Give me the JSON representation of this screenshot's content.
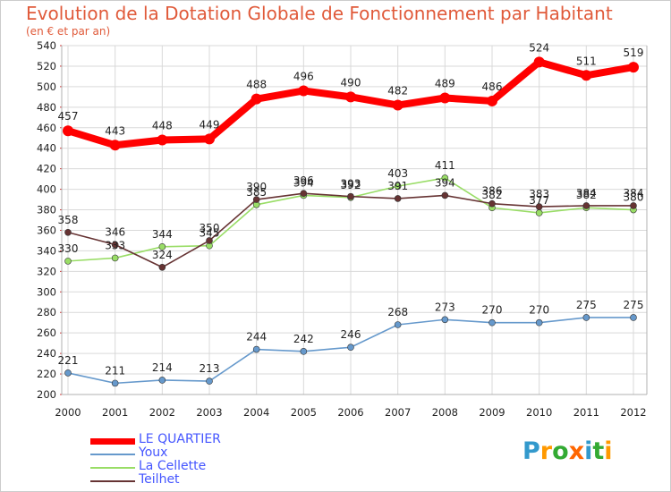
{
  "header": {
    "title": "Evolution de la Dotation Globale de Fonctionnement par Habitant",
    "subtitle": "(en € et par an)"
  },
  "colors": {
    "title": "#e05a3a",
    "grid": "#d9d9d9",
    "axis": "#b0b0b0"
  },
  "chart_data": {
    "type": "line",
    "title": "Evolution de la Dotation Globale de Fonctionnement par Habitant",
    "subtitle": "(en € et par an)",
    "xlabel": "",
    "ylabel": "",
    "x": [
      "2000",
      "2001",
      "2002",
      "2003",
      "2004",
      "2005",
      "2006",
      "2007",
      "2008",
      "2009",
      "2010",
      "2011",
      "2012"
    ],
    "ylim": [
      200,
      540
    ],
    "yticks": [
      200,
      220,
      240,
      260,
      280,
      300,
      320,
      340,
      360,
      380,
      400,
      420,
      440,
      460,
      480,
      500,
      520,
      540
    ],
    "grid": true,
    "legend": "bottom-left",
    "series": [
      {
        "name": "LE QUARTIER",
        "color": "#ff0000",
        "values": [
          457,
          443,
          448,
          449,
          488,
          496,
          490,
          482,
          489,
          486,
          524,
          511,
          519
        ]
      },
      {
        "name": "Youx",
        "color": "#6699cc",
        "values": [
          221,
          211,
          214,
          213,
          244,
          242,
          246,
          268,
          273,
          270,
          270,
          275,
          275
        ]
      },
      {
        "name": "La Cellette",
        "color": "#99dd66",
        "values": [
          330,
          333,
          344,
          345,
          385,
          394,
          392,
          403,
          411,
          382,
          377,
          382,
          380
        ]
      },
      {
        "name": "Teilhet",
        "color": "#663333",
        "values": [
          358,
          346,
          324,
          350,
          390,
          396,
          393,
          391,
          394,
          386,
          383,
          384,
          384
        ]
      }
    ]
  },
  "legend": {
    "items": [
      {
        "label": "LE QUARTIER",
        "color": "#ff0000",
        "text_color": "#4455ff"
      },
      {
        "label": "Youx",
        "color": "#6699cc",
        "text_color": "#4455ff"
      },
      {
        "label": "La Cellette",
        "color": "#99dd66",
        "text_color": "#4455ff"
      },
      {
        "label": "Teilhet",
        "color": "#663333",
        "text_color": "#4455ff"
      }
    ]
  },
  "logo": {
    "text": "Proxiti",
    "letter_colors": [
      "#3399cc",
      "#ff9900",
      "#33aa33",
      "#ff6600",
      "#3399cc",
      "#33aa33",
      "#ff9900"
    ]
  }
}
